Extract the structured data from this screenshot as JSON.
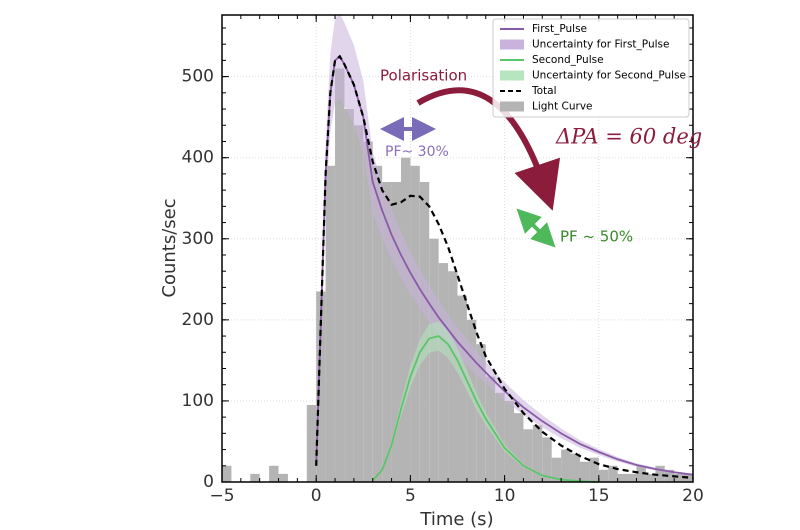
{
  "chart_data": {
    "type": "histogram",
    "xlabel": "Time (s)",
    "ylabel": "Counts/sec",
    "xlim": [
      -5,
      20
    ],
    "ylim": [
      0,
      576
    ],
    "xticks": [
      {
        "value": -5,
        "label": "−5"
      },
      0,
      5,
      10,
      15,
      20
    ],
    "yticks": [
      0,
      100,
      200,
      300,
      400,
      500
    ],
    "grid": true,
    "histogram": {
      "name": "Light Curve",
      "color": "#b4b4b4",
      "bins": [
        -5,
        -4.5,
        -4,
        -3.5,
        -3,
        -2.5,
        -2,
        -1.5,
        -1,
        -0.5,
        0,
        0.5,
        1,
        1.5,
        2,
        2.5,
        3,
        3.5,
        4,
        4.5,
        5,
        5.5,
        6,
        6.5,
        7,
        7.5,
        8,
        8.5,
        9,
        9.5,
        10,
        10.5,
        11,
        11.5,
        12,
        12.5,
        13,
        13.5,
        14,
        14.5,
        15,
        15.5,
        16,
        16.5,
        17,
        17.5,
        18,
        18.5,
        19,
        19.5,
        20
      ],
      "counts": [
        20,
        0,
        0,
        10,
        0,
        20,
        10,
        0,
        0,
        95,
        235,
        390,
        510,
        460,
        440,
        420,
        390,
        370,
        370,
        400,
        390,
        370,
        300,
        270,
        260,
        230,
        200,
        170,
        130,
        110,
        100,
        85,
        65,
        70,
        55,
        30,
        40,
        35,
        25,
        30,
        15,
        20,
        10,
        10,
        20,
        10,
        20,
        15,
        10,
        10
      ]
    },
    "x": [
      0,
      0.25,
      0.5,
      0.75,
      1,
      1.25,
      1.5,
      2,
      2.5,
      3,
      3.5,
      4,
      4.5,
      5,
      5.5,
      6,
      6.5,
      7,
      7.5,
      8,
      8.5,
      9,
      10,
      11,
      12,
      13,
      14,
      15,
      16,
      17,
      18,
      19,
      20
    ],
    "series": [
      {
        "name": "First_Pulse",
        "color": "#8a5aa8",
        "values": [
          20,
          200,
          380,
          480,
          520,
          525,
          515,
          490,
          450,
          370,
          335,
          305,
          280,
          258,
          238,
          220,
          203,
          188,
          173,
          160,
          147,
          135,
          112,
          92,
          75,
          60,
          47,
          37,
          28,
          21,
          16,
          12,
          9
        ],
        "band": {
          "name": "Uncertainty for First_Pulse",
          "color": "#c9b3dd",
          "spread": 0.1
        }
      },
      {
        "name": "Second_Pulse",
        "color": "#5cc46a",
        "values": [
          null,
          null,
          null,
          null,
          null,
          null,
          null,
          null,
          null,
          2,
          15,
          45,
          90,
          130,
          160,
          177,
          180,
          170,
          150,
          125,
          100,
          78,
          42,
          20,
          8,
          3,
          1,
          0,
          null,
          null,
          null,
          null,
          null
        ],
        "band": {
          "name": "Uncertainty for Second_Pulse",
          "color": "#b5e6bd",
          "spread": 0.1
        }
      },
      {
        "name": "Total",
        "color": "#000000",
        "dashed": true,
        "values": [
          20,
          200,
          380,
          480,
          520,
          525,
          515,
          490,
          450,
          395,
          360,
          342,
          345,
          353,
          352,
          340,
          318,
          290,
          255,
          220,
          185,
          155,
          115,
          85,
          62,
          45,
          32,
          22,
          16,
          12,
          9,
          7,
          5
        ]
      }
    ],
    "annotations": [
      {
        "text": "Polarisation",
        "color": "#8b1c3c"
      },
      {
        "text": "ΔPA = 60 deg",
        "color": "#8b1c3c"
      },
      {
        "text": "PF~ 30%",
        "color": "#8a6fb8"
      },
      {
        "text": "PF ~ 50%",
        "color": "#3a8a2a"
      }
    ]
  }
}
